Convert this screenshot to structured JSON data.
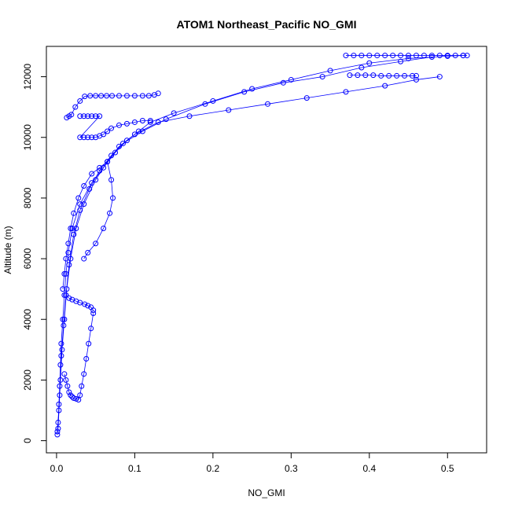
{
  "chart_data": {
    "type": "scatter",
    "title": "ATOM1 Northeast_Pacific NO_GMI",
    "xlabel": "NO_GMI",
    "ylabel": "Altitude (m)",
    "xlim": [
      -0.013,
      0.55
    ],
    "ylim": [
      -400,
      13000
    ],
    "x_ticks": [
      0.0,
      0.1,
      0.2,
      0.3,
      0.4,
      0.5
    ],
    "x_tick_labels": [
      "0.0",
      "0.1",
      "0.2",
      "0.3",
      "0.4",
      "0.5"
    ],
    "y_ticks": [
      0,
      2000,
      4000,
      6000,
      8000,
      10000,
      12000
    ],
    "y_tick_labels": [
      "0",
      "2000",
      "4000",
      "6000",
      "8000",
      "10000",
      "12000"
    ],
    "marker": "open-circle",
    "color": "#0000ff",
    "grid": false,
    "legend": "none",
    "series": [
      {
        "points": [
          [
            0.001,
            200
          ],
          [
            0.002,
            600
          ],
          [
            0.003,
            1200
          ],
          [
            0.004,
            1800
          ],
          [
            0.005,
            2500
          ],
          [
            0.006,
            3200
          ],
          [
            0.008,
            4000
          ],
          [
            0.01,
            4800
          ],
          [
            0.012,
            5500
          ],
          [
            0.015,
            6200
          ],
          [
            0.02,
            7000
          ],
          [
            0.03,
            7800
          ],
          [
            0.045,
            8500
          ],
          [
            0.06,
            9000
          ],
          [
            0.075,
            9500
          ],
          [
            0.09,
            9900
          ],
          [
            0.105,
            10200
          ],
          [
            0.12,
            10500
          ],
          [
            0.15,
            10800
          ],
          [
            0.2,
            11200
          ],
          [
            0.25,
            11600
          ],
          [
            0.3,
            11900
          ],
          [
            0.35,
            12200
          ],
          [
            0.4,
            12450
          ],
          [
            0.45,
            12600
          ],
          [
            0.5,
            12680
          ],
          [
            0.52,
            12700
          ]
        ]
      },
      {
        "points": [
          [
            0.001,
            300
          ],
          [
            0.003,
            1000
          ],
          [
            0.005,
            2000
          ],
          [
            0.007,
            3000
          ],
          [
            0.01,
            4000
          ],
          [
            0.013,
            5000
          ],
          [
            0.018,
            6000
          ],
          [
            0.025,
            7000
          ],
          [
            0.035,
            7800
          ],
          [
            0.05,
            8600
          ],
          [
            0.065,
            9200
          ],
          [
            0.08,
            9700
          ],
          [
            0.1,
            10100
          ],
          [
            0.13,
            10500
          ],
          [
            0.17,
            10700
          ],
          [
            0.22,
            10900
          ],
          [
            0.27,
            11100
          ],
          [
            0.32,
            11300
          ],
          [
            0.37,
            11500
          ],
          [
            0.42,
            11700
          ],
          [
            0.46,
            11900
          ],
          [
            0.49,
            12000
          ]
        ]
      },
      {
        "points": [
          [
            0.002,
            400
          ],
          [
            0.004,
            1500
          ],
          [
            0.006,
            2800
          ],
          [
            0.009,
            3800
          ],
          [
            0.012,
            4800
          ],
          [
            0.016,
            5800
          ],
          [
            0.022,
            6800
          ],
          [
            0.03,
            7600
          ],
          [
            0.042,
            8300
          ],
          [
            0.055,
            8900
          ],
          [
            0.07,
            9400
          ],
          [
            0.085,
            9800
          ],
          [
            0.11,
            10200
          ],
          [
            0.14,
            10600
          ],
          [
            0.19,
            11100
          ],
          [
            0.24,
            11500
          ],
          [
            0.29,
            11800
          ],
          [
            0.34,
            12000
          ],
          [
            0.39,
            12300
          ],
          [
            0.44,
            12500
          ],
          [
            0.48,
            12650
          ]
        ]
      },
      {
        "points": [
          [
            0.013,
            10650
          ],
          [
            0.016,
            10700
          ],
          [
            0.019,
            10750
          ],
          [
            0.024,
            11000
          ],
          [
            0.03,
            11200
          ],
          [
            0.036,
            11350
          ],
          [
            0.043,
            11370
          ],
          [
            0.05,
            11370
          ],
          [
            0.057,
            11370
          ],
          [
            0.064,
            11370
          ],
          [
            0.071,
            11370
          ],
          [
            0.08,
            11370
          ],
          [
            0.09,
            11370
          ],
          [
            0.1,
            11370
          ],
          [
            0.11,
            11370
          ],
          [
            0.118,
            11370
          ],
          [
            0.125,
            11400
          ],
          [
            0.13,
            11450
          ]
        ]
      },
      {
        "points": [
          [
            0.03,
            10700
          ],
          [
            0.035,
            10700
          ],
          [
            0.04,
            10700
          ],
          [
            0.045,
            10700
          ],
          [
            0.05,
            10700
          ],
          [
            0.055,
            10700
          ],
          [
            0.03,
            10000
          ],
          [
            0.035,
            10000
          ],
          [
            0.04,
            10000
          ],
          [
            0.045,
            10000
          ],
          [
            0.05,
            10000
          ],
          [
            0.055,
            10050
          ],
          [
            0.06,
            10100
          ],
          [
            0.065,
            10200
          ],
          [
            0.07,
            10300
          ],
          [
            0.08,
            10400
          ],
          [
            0.09,
            10450
          ],
          [
            0.1,
            10500
          ],
          [
            0.11,
            10550
          ],
          [
            0.12,
            10550
          ]
        ]
      },
      {
        "points": [
          [
            0.37,
            12700
          ],
          [
            0.38,
            12700
          ],
          [
            0.39,
            12700
          ],
          [
            0.4,
            12700
          ],
          [
            0.41,
            12700
          ],
          [
            0.42,
            12700
          ],
          [
            0.43,
            12700
          ],
          [
            0.44,
            12700
          ],
          [
            0.45,
            12700
          ],
          [
            0.46,
            12700
          ],
          [
            0.47,
            12700
          ],
          [
            0.48,
            12700
          ],
          [
            0.49,
            12700
          ],
          [
            0.5,
            12700
          ],
          [
            0.51,
            12700
          ],
          [
            0.52,
            12700
          ],
          [
            0.525,
            12700
          ]
        ]
      },
      {
        "points": [
          [
            0.375,
            12050
          ],
          [
            0.385,
            12050
          ],
          [
            0.395,
            12050
          ],
          [
            0.405,
            12050
          ],
          [
            0.415,
            12030
          ],
          [
            0.425,
            12030
          ],
          [
            0.435,
            12030
          ],
          [
            0.445,
            12030
          ],
          [
            0.455,
            12030
          ],
          [
            0.46,
            12030
          ]
        ]
      },
      {
        "points": [
          [
            0.01,
            2200
          ],
          [
            0.012,
            2000
          ],
          [
            0.014,
            1800
          ],
          [
            0.016,
            1600
          ],
          [
            0.018,
            1500
          ],
          [
            0.02,
            1450
          ],
          [
            0.022,
            1400
          ],
          [
            0.025,
            1380
          ],
          [
            0.028,
            1350
          ],
          [
            0.03,
            1500
          ],
          [
            0.032,
            1800
          ],
          [
            0.035,
            2200
          ],
          [
            0.038,
            2700
          ],
          [
            0.041,
            3200
          ],
          [
            0.044,
            3700
          ],
          [
            0.047,
            4200
          ]
        ]
      },
      {
        "points": [
          [
            0.012,
            4800
          ],
          [
            0.016,
            4700
          ],
          [
            0.02,
            4650
          ],
          [
            0.025,
            4600
          ],
          [
            0.03,
            4550
          ],
          [
            0.036,
            4500
          ],
          [
            0.04,
            4450
          ],
          [
            0.044,
            4400
          ],
          [
            0.047,
            4300
          ]
        ]
      },
      {
        "points": [
          [
            0.008,
            5000
          ],
          [
            0.01,
            5500
          ],
          [
            0.012,
            6000
          ],
          [
            0.015,
            6500
          ],
          [
            0.018,
            7000
          ],
          [
            0.022,
            7500
          ],
          [
            0.028,
            8000
          ],
          [
            0.035,
            8400
          ],
          [
            0.045,
            8800
          ],
          [
            0.055,
            9000
          ],
          [
            0.065,
            9200
          ],
          [
            0.07,
            8600
          ],
          [
            0.072,
            8000
          ],
          [
            0.068,
            7500
          ],
          [
            0.06,
            7000
          ],
          [
            0.05,
            6500
          ],
          [
            0.04,
            6200
          ],
          [
            0.035,
            6000
          ]
        ]
      }
    ]
  }
}
